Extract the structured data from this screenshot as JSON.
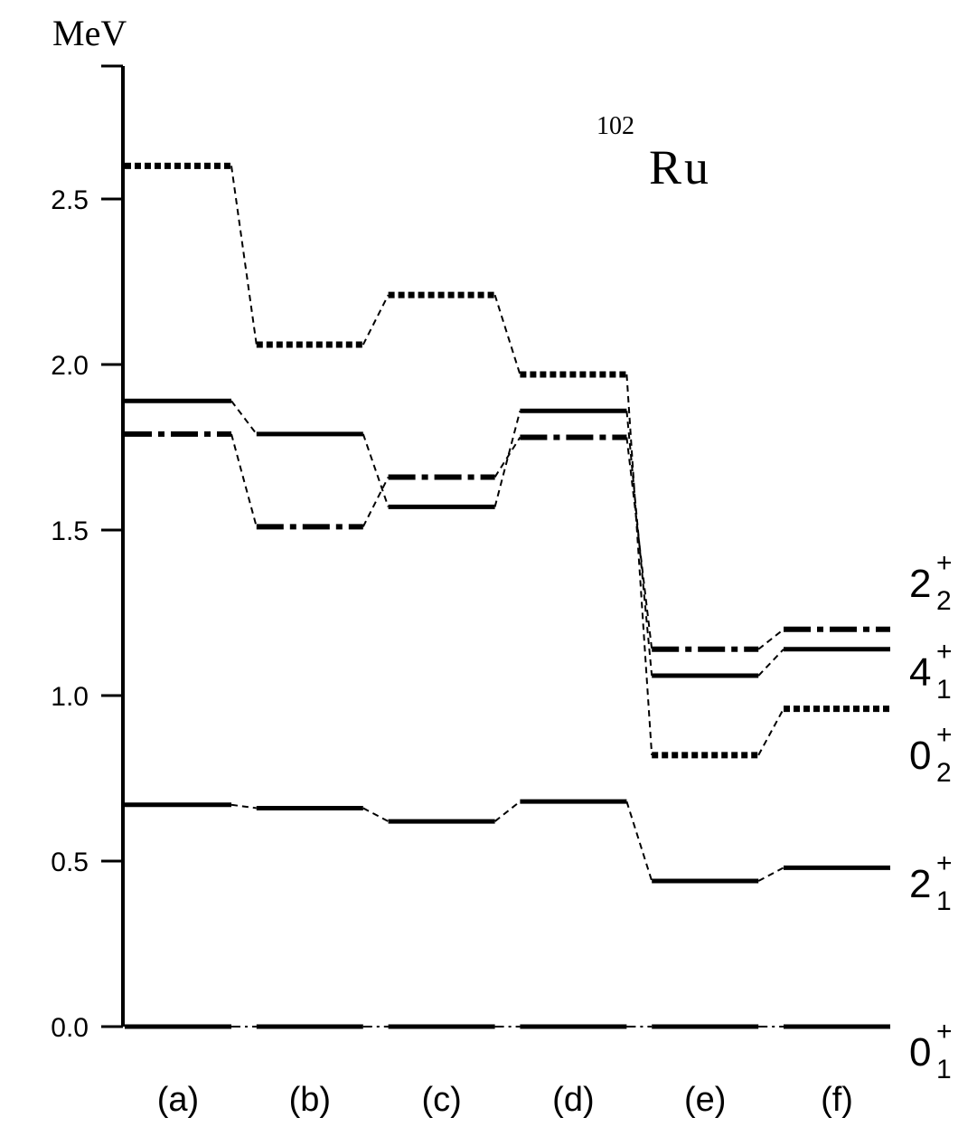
{
  "chart_data": {
    "type": "line",
    "ylabel": "MeV",
    "ylim": [
      0,
      2.9
    ],
    "yticks": [
      0.0,
      0.5,
      1.0,
      1.5,
      2.0,
      2.5
    ],
    "ytick_labels": [
      "0.0",
      "0.5",
      "1.0",
      "1.5",
      "2.0",
      "2.5"
    ],
    "grid": false,
    "nucleus": {
      "mass_number": "102",
      "element": "Ru"
    },
    "categories": [
      "(a)",
      "(b)",
      "(c)",
      "(d)",
      "(e)",
      "(f)"
    ],
    "series": [
      {
        "key": "0_1",
        "level_base": "0",
        "level_sub": "1",
        "level_sup": "+",
        "style": "solid",
        "values": [
          0.0,
          0.0,
          0.0,
          0.0,
          0.0,
          0.0
        ]
      },
      {
        "key": "2_1",
        "level_base": "2",
        "level_sub": "1",
        "level_sup": "+",
        "style": "solid",
        "values": [
          0.67,
          0.66,
          0.62,
          0.68,
          0.44,
          0.48
        ]
      },
      {
        "key": "0_2",
        "level_base": "0",
        "level_sub": "2",
        "level_sup": "+",
        "style": "dotted",
        "values": [
          2.6,
          2.06,
          2.21,
          1.97,
          0.82,
          0.96
        ]
      },
      {
        "key": "4_1",
        "level_base": "4",
        "level_sub": "1",
        "level_sup": "+",
        "style": "solid",
        "values": [
          1.89,
          1.79,
          1.57,
          1.86,
          1.06,
          1.14
        ]
      },
      {
        "key": "2_2",
        "level_base": "2",
        "level_sub": "2",
        "level_sup": "+",
        "style": "dashdot",
        "values": [
          1.79,
          1.51,
          1.66,
          1.78,
          1.14,
          1.2
        ]
      }
    ]
  }
}
